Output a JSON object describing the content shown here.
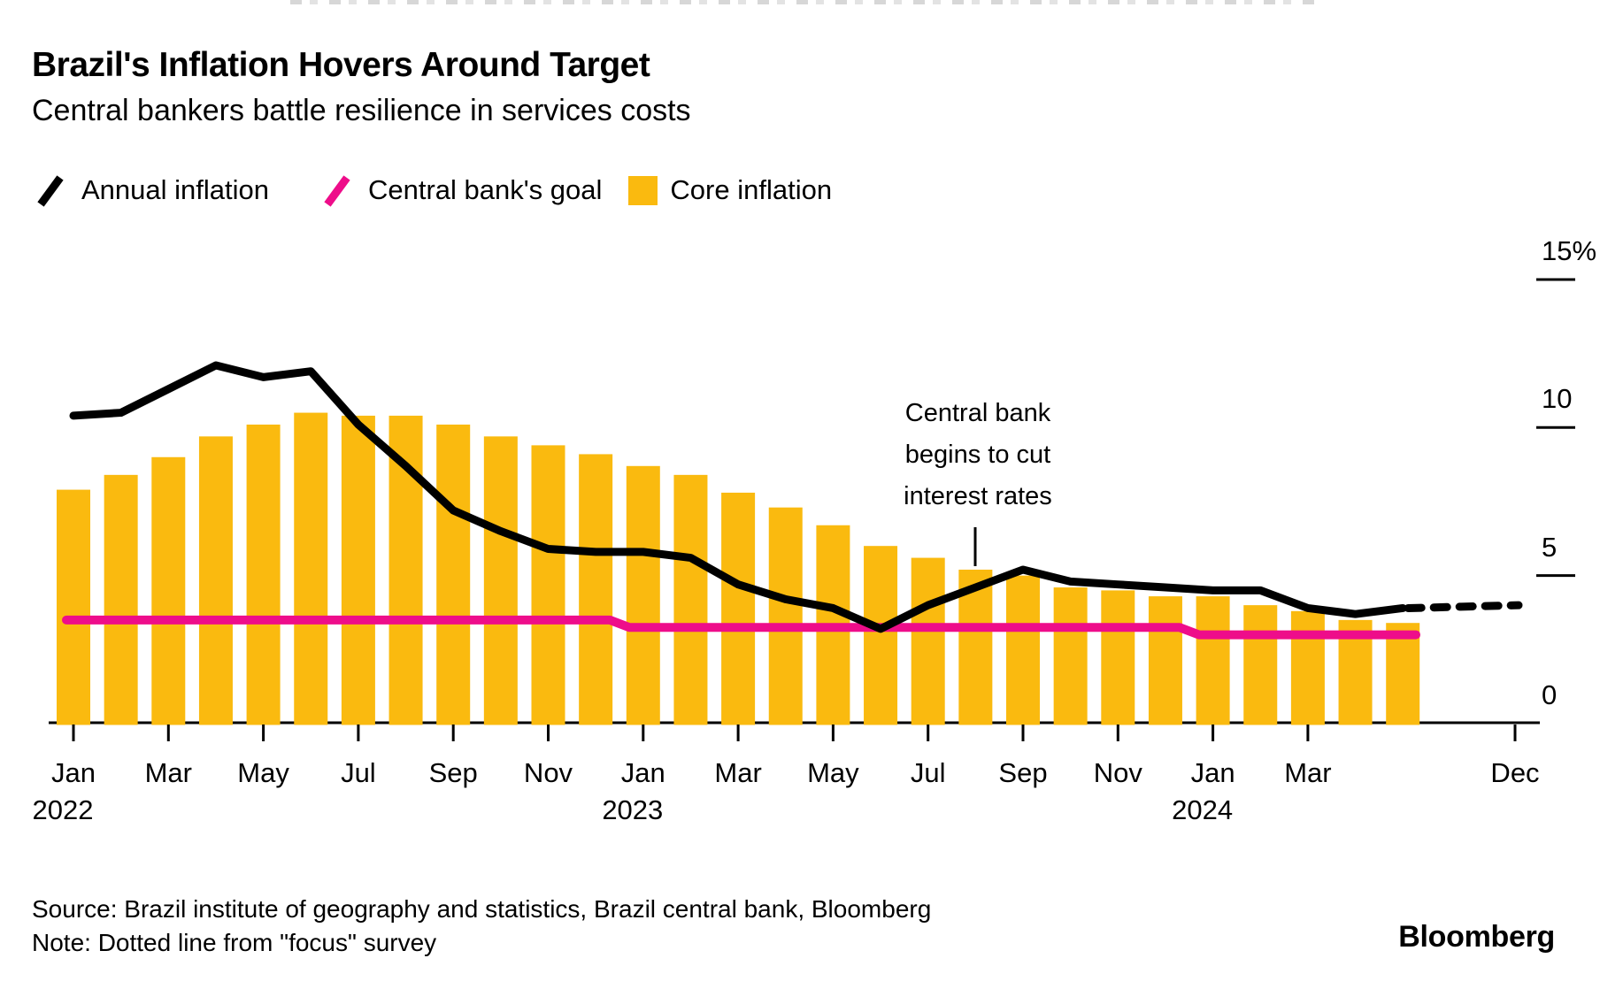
{
  "header": {
    "title": "Brazil's Inflation Hovers Around Target",
    "subtitle": "Central bankers battle resilience in services costs"
  },
  "legend": [
    {
      "label": "Annual inflation",
      "glyph": "slash",
      "color": "#000000"
    },
    {
      "label": "Central bank's goal",
      "glyph": "slash",
      "color": "#EE0D8A"
    },
    {
      "label": "Core inflation",
      "glyph": "square",
      "color": "#FABA0F"
    }
  ],
  "annotation": {
    "lines": [
      "Central bank",
      "begins to cut",
      "interest rates"
    ],
    "points_at": "Aug 2023"
  },
  "footer": {
    "source": "Source: Brazil institute of geography and statistics, Brazil central bank, Bloomberg",
    "note": "Note: Dotted line from \"focus\" survey"
  },
  "branding": {
    "logo": "Bloomberg"
  },
  "chart_data": {
    "type": "bar",
    "subtype": "bar+line combo, monthly",
    "title": "Brazil's Inflation Hovers Around Target",
    "xlabel": "",
    "ylabel": "%",
    "ylim": [
      0,
      15
    ],
    "yticks": [
      0,
      5,
      10,
      15
    ],
    "ytick_labels": [
      "0",
      "5",
      "10",
      "15%"
    ],
    "grid": false,
    "legend_position": "top-left",
    "x": [
      "Jan 2022",
      "Feb 2022",
      "Mar 2022",
      "Apr 2022",
      "May 2022",
      "Jun 2022",
      "Jul 2022",
      "Aug 2022",
      "Sep 2022",
      "Oct 2022",
      "Nov 2022",
      "Dec 2022",
      "Jan 2023",
      "Feb 2023",
      "Mar 2023",
      "Apr 2023",
      "May 2023",
      "Jun 2023",
      "Jul 2023",
      "Aug 2023",
      "Sep 2023",
      "Oct 2023",
      "Nov 2023",
      "Dec 2023",
      "Jan 2024",
      "Feb 2024",
      "Mar 2024",
      "Apr 2024",
      "May 2024"
    ],
    "series": [
      {
        "name": "Core inflation",
        "type": "bar",
        "color": "#FABA0F",
        "values": [
          7.9,
          8.4,
          9.0,
          9.7,
          10.1,
          10.5,
          10.4,
          10.4,
          10.1,
          9.7,
          9.4,
          9.1,
          8.7,
          8.4,
          7.8,
          7.3,
          6.7,
          6.0,
          5.6,
          5.2,
          5.0,
          4.6,
          4.5,
          4.3,
          4.3,
          4.0,
          3.8,
          3.5,
          3.4
        ]
      },
      {
        "name": "Annual inflation",
        "type": "line",
        "color": "#000000",
        "values": [
          10.4,
          10.5,
          11.3,
          12.1,
          11.7,
          11.9,
          10.1,
          8.7,
          7.2,
          6.5,
          5.9,
          5.8,
          5.8,
          5.6,
          4.7,
          4.2,
          3.9,
          3.2,
          4.0,
          4.6,
          5.2,
          4.8,
          4.7,
          4.6,
          4.5,
          4.5,
          3.9,
          3.7,
          3.9
        ]
      },
      {
        "name": "Central bank's goal",
        "type": "line",
        "color": "#EE0D8A",
        "values": [
          3.5,
          3.5,
          3.5,
          3.5,
          3.5,
          3.5,
          3.5,
          3.5,
          3.5,
          3.5,
          3.5,
          3.5,
          3.25,
          3.25,
          3.25,
          3.25,
          3.25,
          3.25,
          3.25,
          3.25,
          3.25,
          3.25,
          3.25,
          3.25,
          3.0,
          3.0,
          3.0,
          3.0,
          3.0
        ]
      }
    ],
    "forecast": {
      "name": "Annual inflation forecast (dotted)",
      "style": "dotted",
      "from": "May 2024",
      "to": "Dec 2024",
      "start_value": 3.9,
      "end_value": 4.0
    },
    "xticks": [
      {
        "m": "Jan",
        "year": "2022",
        "i": 0
      },
      {
        "m": "Mar",
        "i": 2
      },
      {
        "m": "May",
        "i": 4
      },
      {
        "m": "Jul",
        "i": 6
      },
      {
        "m": "Sep",
        "i": 8
      },
      {
        "m": "Nov",
        "i": 10
      },
      {
        "m": "Jan",
        "year": "2023",
        "i": 12
      },
      {
        "m": "Mar",
        "i": 14
      },
      {
        "m": "May",
        "i": 16
      },
      {
        "m": "Jul",
        "i": 18
      },
      {
        "m": "Sep",
        "i": 20
      },
      {
        "m": "Nov",
        "i": 22
      },
      {
        "m": "Jan",
        "year": "2024",
        "i": 24
      },
      {
        "m": "Mar",
        "i": 26
      },
      {
        "m": "Dec",
        "x": 1712
      }
    ]
  }
}
